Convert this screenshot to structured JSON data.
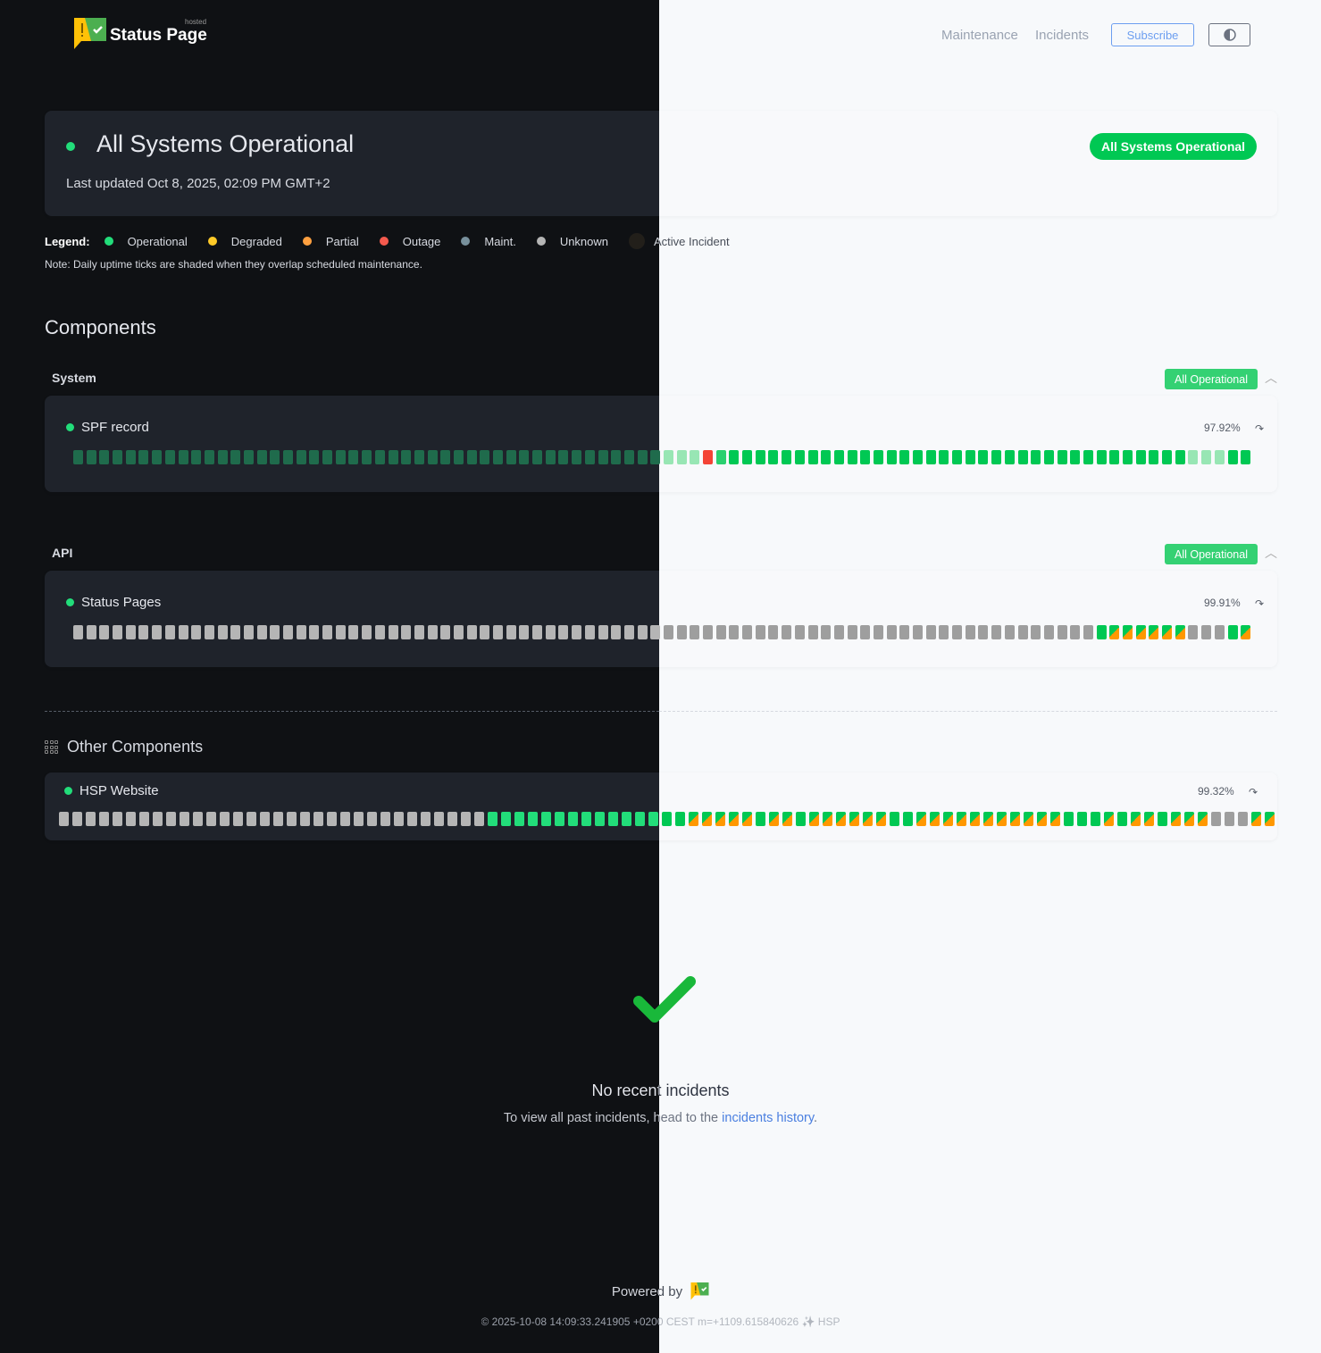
{
  "header": {
    "logo_text": "Status Page",
    "logo_badge": "hosted",
    "nav": [
      {
        "label": "Maintenance"
      },
      {
        "label": "Incidents"
      }
    ],
    "subscribe_label": "Subscribe",
    "theme_toggle_icon": "half-circle-contrast-icon"
  },
  "status": {
    "title": "All Systems Operational",
    "last_updated": "Last updated Oct 8, 2025, 02:09 PM GMT+2",
    "badge": "All Systems Operational"
  },
  "legend": {
    "label": "Legend:",
    "items": [
      {
        "label": "Operational",
        "color": "#22dd7a"
      },
      {
        "label": "Degraded",
        "color": "#ffca28"
      },
      {
        "label": "Partial",
        "color": "#ffa040"
      },
      {
        "label": "Outage",
        "color": "#f55a4e"
      },
      {
        "label": "Maint.",
        "color": "#78909c"
      },
      {
        "label": "Unknown",
        "color": "#b5b5b5"
      },
      {
        "label": "Active Incident",
        "color": "#221f1a"
      }
    ],
    "note": "Note: Daily uptime ticks are shaded when they overlap scheduled maintenance."
  },
  "components_heading": "Components",
  "groups": [
    {
      "name": "System",
      "badge": "All Operational",
      "components": [
        {
          "name": "SPF record",
          "uptime": "97.92%",
          "ticks": "dim*45,pale*3,out,op2,op*35,pale*3,op*2"
        }
      ]
    },
    {
      "name": "API",
      "badge": "All Operational",
      "components": [
        {
          "name": "Status Pages",
          "uptime": "99.91%",
          "ticks": "unk*78,op,split*6,unk*3,op,split"
        }
      ]
    }
  ],
  "other": {
    "heading": "Other Components",
    "components": [
      {
        "name": "HSP Website",
        "uptime": "99.32%",
        "ticks": "unk*32,op*15,split*5,op,split*2,op,split*6,op*2,split*11,op*3,split,op,split*2,op,split*3,unk*3,split*2"
      }
    ]
  },
  "colors": {
    "operational": "#00c853",
    "partial": "#ff9800",
    "outage": "#f44336",
    "unknown": "#9e9e9e",
    "accent": "#4a7fe0"
  },
  "incidents": {
    "title": "No recent incidents",
    "text": "To view all past incidents, head to the ",
    "link": "incidents history",
    "suffix": "."
  },
  "footer": {
    "powered_by": "Powered by",
    "copyright": "© 2025-10-08 14:09:33.241905 +0200 CEST m=+1109.615840626 ✨ HSP"
  }
}
